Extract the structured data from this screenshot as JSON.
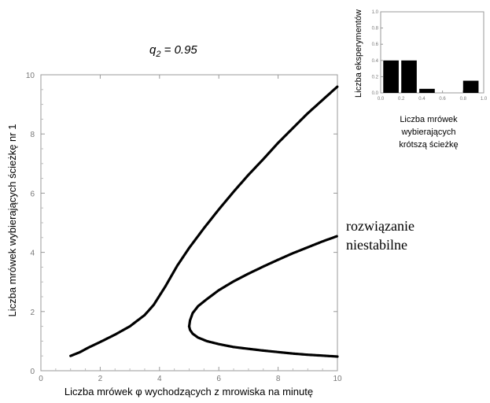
{
  "chart_data": [
    {
      "type": "line",
      "title_prefix": "q",
      "title_subscript": "2",
      "title_value": " = 0.95",
      "xlabel": "Liczba mrówek φ wychodzących z mrowiska na minutę",
      "ylabel": "Liczba mrówek wybierających ścieżkę nr 1",
      "xlim": [
        0,
        10
      ],
      "ylim": [
        0,
        10
      ],
      "xticks": [
        0,
        2,
        4,
        6,
        8,
        10
      ],
      "yticks": [
        0,
        2,
        4,
        6,
        8,
        10
      ],
      "annotation": [
        "rozwiązanie",
        "niestabilne"
      ],
      "series": [
        {
          "points": [
            [
              1.0,
              0.5
            ],
            [
              1.3,
              0.62
            ],
            [
              1.6,
              0.78
            ],
            [
              2.0,
              0.97
            ],
            [
              2.5,
              1.22
            ],
            [
              3.0,
              1.5
            ],
            [
              3.5,
              1.88
            ],
            [
              3.8,
              2.22
            ],
            [
              4.2,
              2.85
            ],
            [
              4.6,
              3.55
            ],
            [
              5.0,
              4.15
            ],
            [
              5.5,
              4.82
            ],
            [
              6.0,
              5.45
            ],
            [
              6.5,
              6.05
            ],
            [
              7.0,
              6.62
            ],
            [
              7.5,
              7.15
            ],
            [
              8.0,
              7.7
            ],
            [
              8.5,
              8.2
            ],
            [
              9.0,
              8.7
            ],
            [
              9.5,
              9.15
            ],
            [
              10.0,
              9.6
            ]
          ]
        },
        {
          "points": [
            [
              5.0,
              1.5
            ],
            [
              5.03,
              1.7
            ],
            [
              5.12,
              1.95
            ],
            [
              5.3,
              2.18
            ],
            [
              5.6,
              2.42
            ],
            [
              6.0,
              2.72
            ],
            [
              6.5,
              3.02
            ],
            [
              7.0,
              3.28
            ],
            [
              7.5,
              3.52
            ],
            [
              8.0,
              3.75
            ],
            [
              8.5,
              3.97
            ],
            [
              9.0,
              4.17
            ],
            [
              9.5,
              4.37
            ],
            [
              10.0,
              4.55
            ]
          ]
        },
        {
          "points": [
            [
              5.0,
              1.5
            ],
            [
              5.03,
              1.38
            ],
            [
              5.12,
              1.25
            ],
            [
              5.3,
              1.12
            ],
            [
              5.6,
              1.0
            ],
            [
              6.0,
              0.9
            ],
            [
              6.5,
              0.8
            ],
            [
              7.0,
              0.74
            ],
            [
              7.5,
              0.68
            ],
            [
              8.0,
              0.63
            ],
            [
              8.5,
              0.58
            ],
            [
              9.0,
              0.54
            ],
            [
              9.5,
              0.51
            ],
            [
              10.0,
              0.48
            ]
          ]
        }
      ]
    },
    {
      "type": "bar",
      "title": "",
      "xlabel": [
        "Liczba mrówek",
        "wybierających",
        "krótszą ścieżkę"
      ],
      "ylabel": "Liczba eksperymentów",
      "xlim": [
        0,
        1
      ],
      "ylim": [
        0,
        1
      ],
      "xticks": [
        "0.0",
        "0.2",
        "0.4",
        "0.6",
        "0.8",
        "1.0"
      ],
      "yticks": [
        "0.0",
        "0.2",
        "0.4",
        "0.6",
        "0.8",
        "1.0"
      ],
      "bars": [
        {
          "x0": 0.025,
          "x1": 0.175,
          "value": 0.4
        },
        {
          "x0": 0.2,
          "x1": 0.35,
          "value": 0.4
        },
        {
          "x0": 0.375,
          "x1": 0.525,
          "value": 0.05
        },
        {
          "x0": 0.8,
          "x1": 0.95,
          "value": 0.15
        }
      ]
    }
  ]
}
